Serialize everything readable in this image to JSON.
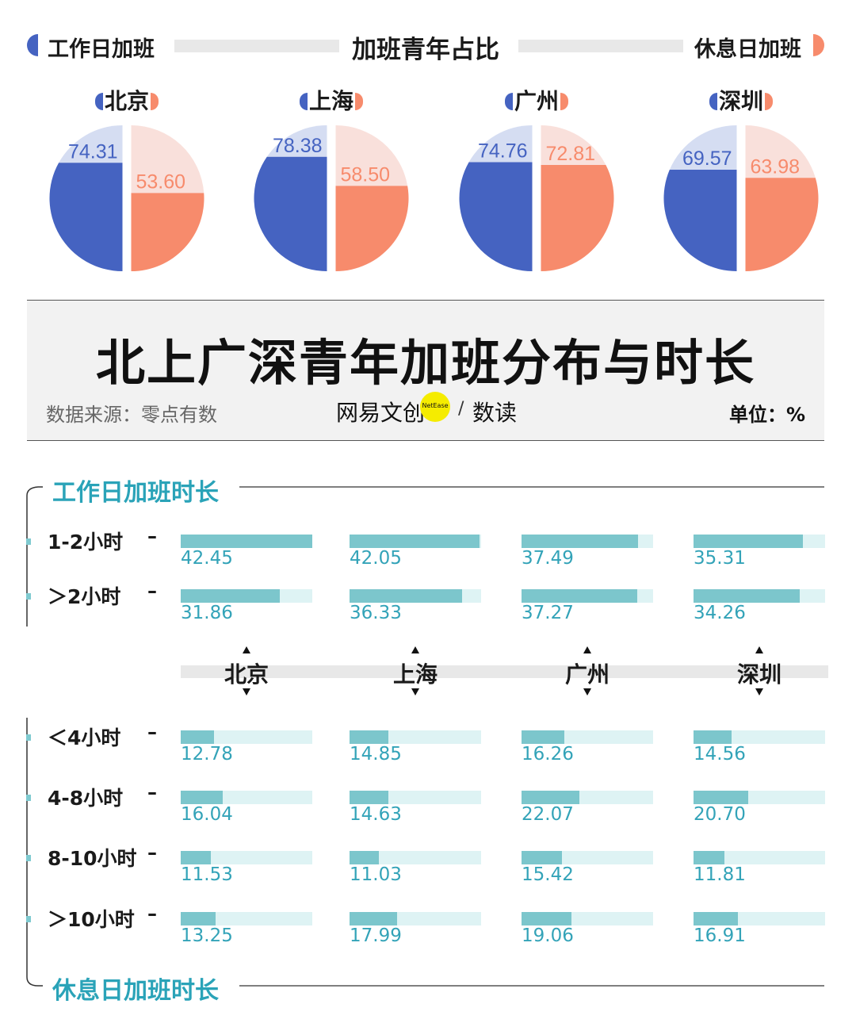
{
  "header": {
    "left_legend": "工作日加班",
    "title": "加班青年占比",
    "right_legend": "休息日加班"
  },
  "colors": {
    "workday": "#4563c1",
    "workday_light": "#d5ddf2",
    "rest": "#f78b6c",
    "rest_light": "#f9e0db",
    "bar": "#7cc6cc",
    "bar_track": "#def3f4",
    "accent_text": "#2aa3b8"
  },
  "banner": {
    "title": "北上广深青年加班分布与时长",
    "source": "数据来源：零点有数",
    "brand": "网易文创",
    "brand_badge": "NetEase",
    "brand_slash": "/",
    "brand2": "数读",
    "unit": "单位：%"
  },
  "sections": {
    "workday_title": "工作日加班时长",
    "rest_title": "休息日加班时长"
  },
  "chart_data": [
    {
      "type": "pie",
      "title": "加班青年占比",
      "categories": [
        "北京",
        "上海",
        "广州",
        "深圳"
      ],
      "series": [
        {
          "name": "工作日加班",
          "values": [
            74.31,
            78.38,
            74.76,
            69.57
          ],
          "labels": [
            "74.31",
            "78.38",
            "74.76",
            "69.57"
          ]
        },
        {
          "name": "休息日加班",
          "values": [
            53.6,
            58.5,
            72.81,
            63.98
          ],
          "labels": [
            "53.60",
            "58.50",
            "72.81",
            "63.98"
          ]
        }
      ]
    },
    {
      "type": "bar",
      "title": "工作日加班时长",
      "categories": [
        "北京",
        "上海",
        "广州",
        "深圳"
      ],
      "series": [
        {
          "name": "1-2小时",
          "values": [
            42.45,
            42.05,
            37.49,
            35.31
          ],
          "labels": [
            "42.45",
            "42.05",
            "37.49",
            "35.31"
          ]
        },
        {
          "name": "＞2小时",
          "values": [
            31.86,
            36.33,
            37.27,
            34.26
          ],
          "labels": [
            "31.86",
            "36.33",
            "37.27",
            "34.26"
          ]
        }
      ],
      "xlim": [
        0,
        42.45
      ]
    },
    {
      "type": "bar",
      "title": "休息日加班时长",
      "categories": [
        "北京",
        "上海",
        "广州",
        "深圳"
      ],
      "series": [
        {
          "name": "＜4小时",
          "values": [
            12.78,
            14.85,
            16.26,
            14.56
          ],
          "labels": [
            "12.78",
            "14.85",
            "16.26",
            "14.56"
          ]
        },
        {
          "name": "4-8小时",
          "values": [
            16.04,
            14.63,
            22.07,
            20.7
          ],
          "labels": [
            "16.04",
            "14.63",
            "22.07",
            "20.70"
          ]
        },
        {
          "name": "8-10小时",
          "values": [
            11.53,
            11.03,
            15.42,
            11.81
          ],
          "labels": [
            "11.53",
            "11.03",
            "15.42",
            "11.81"
          ]
        },
        {
          "name": "＞10小时",
          "values": [
            13.25,
            17.99,
            19.06,
            16.91
          ],
          "labels": [
            "13.25",
            "17.99",
            "19.06",
            "16.91"
          ]
        }
      ],
      "xlim": [
        0,
        50
      ]
    }
  ]
}
